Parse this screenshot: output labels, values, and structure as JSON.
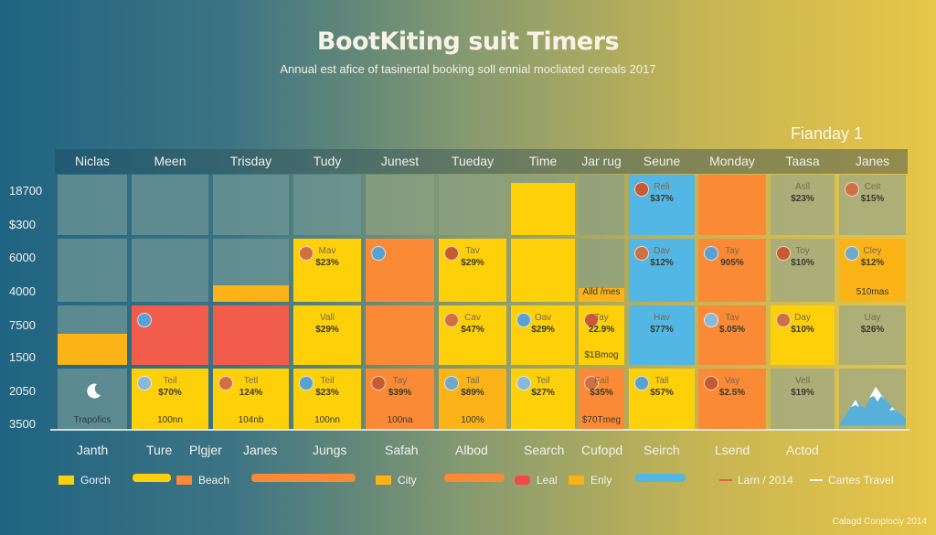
{
  "header": {
    "title": "BootKiting suit Timers",
    "subtitle": "Annual est afice of tasinertal booking soll ennial mocliated cereals 2017",
    "corner_label": "Fianday 1"
  },
  "colors": {
    "yellow": "#fdd00a",
    "orange": "#fa8a35",
    "red": "#f25c4a",
    "amber": "#fbb317",
    "blue": "#52b7e4",
    "teal_empty": "#7fa0a0",
    "sage_empty": "#a6ad8a"
  },
  "chart_data": {
    "type": "heatmap",
    "title": "BootKiting suit Timers",
    "subtitle": "Annual est afice of tasinertal booking soll ennial mocliated cereals 2017",
    "columns": [
      "Niclas",
      "Meen",
      "Trisday",
      "Tudy",
      "Junest",
      "Tueday",
      "Time",
      "Jar rug",
      "Seune",
      "Monday",
      "Taasa",
      "Janes"
    ],
    "y_tick_labels": [
      "18700",
      "$300",
      "6000",
      "4000",
      "7500",
      "1500",
      "2050",
      "3500"
    ],
    "x_labels": [
      "Janth",
      "Ture",
      "Plgjer",
      "Janes",
      "Jungs",
      "Safah",
      "Albod",
      "Search",
      "Cufopd",
      "Seirch",
      "Lsend",
      "Actod"
    ],
    "rows": [
      [
        {
          "color": "empty"
        },
        {
          "color": "empty"
        },
        {
          "color": "empty"
        },
        {
          "color": "empty"
        },
        {
          "color": "empty"
        },
        {
          "color": "empty"
        },
        {
          "color": "yellow",
          "fill_pct": 87
        },
        {
          "color": "empty"
        },
        {
          "color": "blue",
          "name": "Reli",
          "value": "$37%",
          "badge": true
        },
        {
          "color": "orange"
        },
        {
          "color": "empty",
          "name": "Asll",
          "value": "$23%"
        },
        {
          "color": "empty",
          "name": "Ceit",
          "value": "$15%",
          "badge": true
        }
      ],
      [
        {
          "color": "empty"
        },
        {
          "color": "empty"
        },
        {
          "color": "amber",
          "fill_pct": 26
        },
        {
          "color": "yellow",
          "name": "Mav",
          "value": "$23%",
          "badge": true
        },
        {
          "color": "orange",
          "badge": true
        },
        {
          "color": "yellow",
          "name": "Tav",
          "value": "$29%",
          "badge": true
        },
        {
          "color": "yellow"
        },
        {
          "color": "empty",
          "foot": "Alld /mes",
          "foot_color": "amber",
          "fill_pct": 22
        },
        {
          "color": "blue",
          "name": "Dav",
          "value": "$12%",
          "badge": true
        },
        {
          "color": "orange",
          "name": "Tay",
          "value": "905%",
          "badge": true
        },
        {
          "color": "empty",
          "name": "Toy",
          "value": "$10%",
          "badge": true
        },
        {
          "color": "amber",
          "name": "Cley",
          "value": "$12%",
          "foot": "510mas",
          "badge": true
        }
      ],
      [
        {
          "color": "empty",
          "fill_pct": 52,
          "fill_color": "amber"
        },
        {
          "color": "red",
          "badge": true
        },
        {
          "color": "red"
        },
        {
          "color": "yellow",
          "name": "Vall",
          "value": "$29%"
        },
        {
          "color": "orange"
        },
        {
          "color": "yellow",
          "name": "Cav",
          "value": "$47%",
          "badge": true
        },
        {
          "color": "yellow",
          "name": "Oav",
          "value": "$29%",
          "badge": true
        },
        {
          "color": "yellow",
          "name": "Tay",
          "value": "22.9%",
          "foot": "$1Bmog",
          "badge": true
        },
        {
          "color": "blue",
          "name": "Hav",
          "value": "$77%"
        },
        {
          "color": "orange",
          "name": "Tav",
          "value": "$.05%",
          "badge": true
        },
        {
          "color": "yellow",
          "name": "Day",
          "value": "$10%",
          "badge": true
        },
        {
          "color": "empty",
          "name": "Uay",
          "value": "$26%"
        }
      ],
      [
        {
          "color": "empty",
          "icon": "moon",
          "foot": "Trapofics"
        },
        {
          "color": "yellow",
          "name": "Teil",
          "value": "$70%",
          "foot": "100nn",
          "badge": true
        },
        {
          "color": "yellow",
          "name": "Tetl",
          "value": "124%",
          "foot": "104nb",
          "badge": true
        },
        {
          "color": "yellow",
          "name": "Teil",
          "value": "$23%",
          "foot": "100nn",
          "badge": true
        },
        {
          "color": "orange",
          "name": "Tay",
          "value": "$39%",
          "foot": "100na",
          "badge": true
        },
        {
          "color": "amber",
          "name": "Tail",
          "value": "$89%",
          "foot": "100%",
          "badge": true
        },
        {
          "color": "yellow",
          "name": "Teil",
          "value": "$27%",
          "badge": true
        },
        {
          "color": "orange",
          "name": "Fail",
          "value": "$35%",
          "foot": "$70Tmeg",
          "badge": true
        },
        {
          "color": "yellow",
          "name": "Tall",
          "value": "$57%",
          "badge": true
        },
        {
          "color": "orange",
          "name": "Vay",
          "value": "$2.5%",
          "badge": true
        },
        {
          "color": "empty",
          "name": "Vell",
          "value": "$19%"
        },
        {
          "color": "empty",
          "icon": "mountain"
        }
      ]
    ],
    "legend": [
      {
        "label": "Gorch",
        "color": "#fdd00a",
        "kind": "swatch"
      },
      {
        "label": "",
        "color": "#fdd00a",
        "kind": "bar"
      },
      {
        "label": "Beach",
        "color": "#fa8a35",
        "kind": "swatch"
      },
      {
        "label": "",
        "color": "#fa8a35",
        "kind": "bar"
      },
      {
        "label": "City",
        "color": "#fbb317",
        "kind": "swatch"
      },
      {
        "label": "",
        "color": "#fa8a35",
        "kind": "bar"
      },
      {
        "label": "Leal",
        "color": "#f24a4a",
        "kind": "swatch"
      },
      {
        "label": "Enly",
        "color": "#fbb317",
        "kind": "swatch"
      },
      {
        "label": "",
        "color": "#52b7e4",
        "kind": "bar"
      },
      {
        "label": "Larn / 2014",
        "color": "#e0604a",
        "kind": "line"
      },
      {
        "label": "Cartes Travel",
        "color": "#f2f2ee",
        "kind": "line"
      }
    ],
    "footer": "Calagd Conplociy 2014"
  }
}
